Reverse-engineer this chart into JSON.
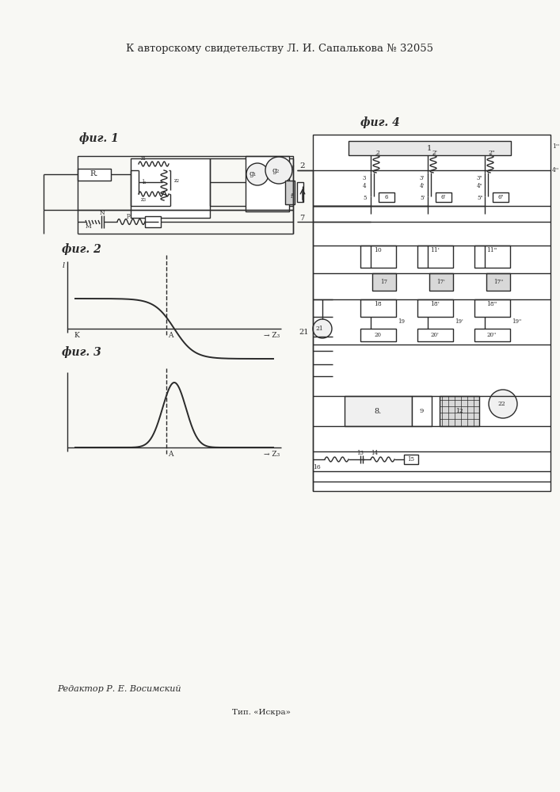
{
  "title": "К авторскому свидетельству Л. И. Сапалькова № 32055",
  "background_color": "#f8f8f4",
  "footer_text1": "Редактор Р. Е. Восимский",
  "footer_text2": "Тип. «Искра»",
  "fig1_label": "фиг. 1",
  "fig2_label": "фиг. 2",
  "fig3_label": "фиг. 3",
  "fig4_label": "фиг. 4",
  "line_color": "#2a2a2a",
  "line_width": 1.0
}
